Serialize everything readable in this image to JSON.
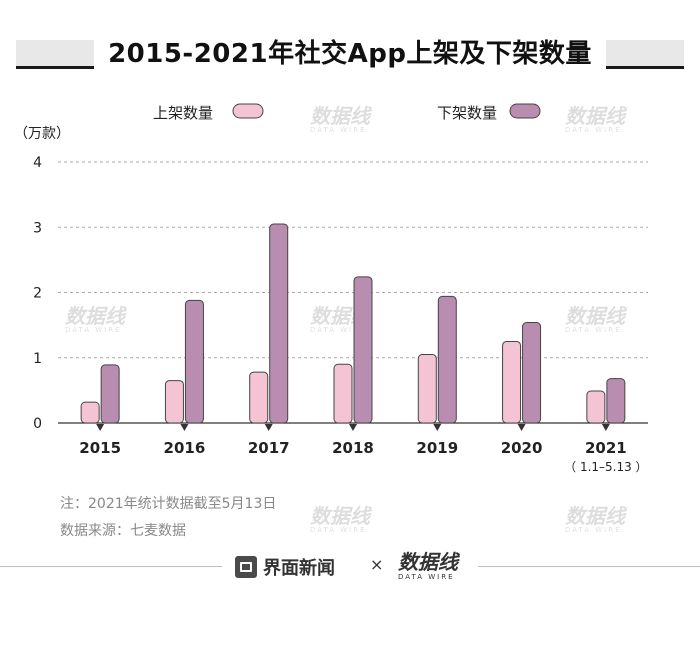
{
  "title": "2015-2021年社交App上架及下架数量",
  "unit_label": "（万款）",
  "chart_data": {
    "type": "bar",
    "categories": [
      "2015",
      "2016",
      "2017",
      "2018",
      "2019",
      "2020",
      "2021"
    ],
    "category_sublabels": [
      "",
      "",
      "",
      "",
      "",
      "",
      "（ 1.1–5.13 ）"
    ],
    "series": [
      {
        "name": "上架数量",
        "values": [
          0.32,
          0.65,
          0.78,
          0.9,
          1.05,
          1.25,
          0.49
        ],
        "color": "#f5c4d4"
      },
      {
        "name": "下架数量",
        "values": [
          0.89,
          1.88,
          3.05,
          2.24,
          1.94,
          1.54,
          0.68
        ],
        "color": "#b98db0"
      }
    ],
    "ylim": [
      0,
      4
    ],
    "yticks": [
      "0",
      "1",
      "2",
      "3",
      "4"
    ],
    "grid": true,
    "legend_position": "top"
  },
  "notes": {
    "note1": "注：2021年统计数据截至5月13日",
    "note2": "数据来源：七麦数据"
  },
  "footer": {
    "brand1": "界面新闻",
    "times": "×",
    "brand2": "数据线",
    "brand2_sub": "DATA WIRE"
  },
  "watermark": {
    "text": "数据线",
    "sub": "DATA WIRE"
  }
}
